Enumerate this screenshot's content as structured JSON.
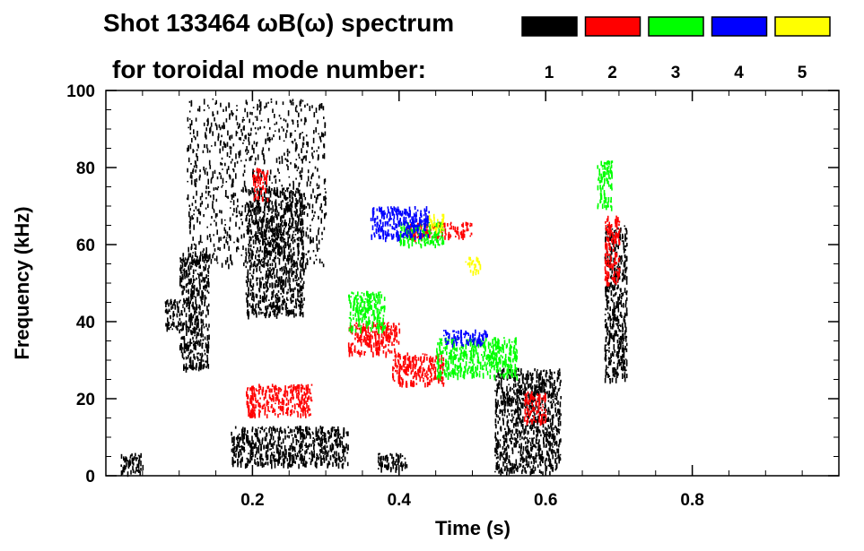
{
  "chart_data": {
    "type": "scatter",
    "title_line1": "Shot 133464 ωB(ω) spectrum",
    "title_line2": "for toroidal mode number:",
    "xlabel": "Time (s)",
    "ylabel": "Frequency (kHz)",
    "xlim": [
      0.0,
      1.0
    ],
    "ylim": [
      0,
      100
    ],
    "x_ticks": [
      {
        "value": 0.2,
        "label": "0.2"
      },
      {
        "value": 0.4,
        "label": "0.4"
      },
      {
        "value": 0.6,
        "label": "0.6"
      },
      {
        "value": 0.8,
        "label": "0.8"
      }
    ],
    "y_ticks": [
      {
        "value": 0,
        "label": "0"
      },
      {
        "value": 20,
        "label": "20"
      },
      {
        "value": 40,
        "label": "40"
      },
      {
        "value": 60,
        "label": "60"
      },
      {
        "value": 80,
        "label": "80"
      },
      {
        "value": 100,
        "label": "100"
      }
    ],
    "legend": [
      {
        "mode": "1",
        "color": "#000000"
      },
      {
        "mode": "2",
        "color": "#ff0000"
      },
      {
        "mode": "3",
        "color": "#00ff00"
      },
      {
        "mode": "4",
        "color": "#0000ff"
      },
      {
        "mode": "5",
        "color": "#ffff00"
      }
    ],
    "series": [
      {
        "name": "n=1",
        "color": "#000000",
        "regions": [
          {
            "t": [
              0.1,
              0.14
            ],
            "f": [
              28,
              58
            ]
          },
          {
            "t": [
              0.08,
              0.1
            ],
            "f": [
              38,
              46
            ]
          },
          {
            "t": [
              0.17,
              0.33
            ],
            "f": [
              3,
              13
            ]
          },
          {
            "t": [
              0.19,
              0.27
            ],
            "f": [
              42,
              75
            ]
          },
          {
            "t": [
              0.11,
              0.3
            ],
            "f": [
              55,
              98
            ]
          },
          {
            "t": [
              0.53,
              0.62
            ],
            "f": [
              1,
              28
            ]
          },
          {
            "t": [
              0.68,
              0.71
            ],
            "f": [
              25,
              65
            ]
          },
          {
            "t": [
              0.37,
              0.41
            ],
            "f": [
              2,
              6
            ]
          },
          {
            "t": [
              0.02,
              0.05
            ],
            "f": [
              1,
              6
            ]
          }
        ]
      },
      {
        "name": "n=2",
        "color": "#ff0000",
        "regions": [
          {
            "t": [
              0.19,
              0.28
            ],
            "f": [
              16,
              24
            ]
          },
          {
            "t": [
              0.33,
              0.4
            ],
            "f": [
              32,
              40
            ]
          },
          {
            "t": [
              0.39,
              0.46
            ],
            "f": [
              24,
              32
            ]
          },
          {
            "t": [
              0.41,
              0.5
            ],
            "f": [
              62,
              66
            ]
          },
          {
            "t": [
              0.57,
              0.6
            ],
            "f": [
              14,
              22
            ]
          },
          {
            "t": [
              0.68,
              0.7
            ],
            "f": [
              50,
              68
            ]
          },
          {
            "t": [
              0.2,
              0.22
            ],
            "f": [
              72,
              80
            ]
          }
        ]
      },
      {
        "name": "n=3",
        "color": "#00ff00",
        "regions": [
          {
            "t": [
              0.33,
              0.38
            ],
            "f": [
              38,
              48
            ]
          },
          {
            "t": [
              0.45,
              0.56
            ],
            "f": [
              26,
              36
            ]
          },
          {
            "t": [
              0.67,
              0.69
            ],
            "f": [
              70,
              82
            ]
          },
          {
            "t": [
              0.4,
              0.46
            ],
            "f": [
              60,
              66
            ]
          }
        ]
      },
      {
        "name": "n=4",
        "color": "#0000ff",
        "regions": [
          {
            "t": [
              0.36,
              0.44
            ],
            "f": [
              62,
              70
            ]
          },
          {
            "t": [
              0.46,
              0.52
            ],
            "f": [
              34,
              38
            ]
          }
        ]
      },
      {
        "name": "n=5",
        "color": "#ffff00",
        "regions": [
          {
            "t": [
              0.44,
              0.46
            ],
            "f": [
              64,
              68
            ]
          },
          {
            "t": [
              0.49,
              0.51
            ],
            "f": [
              53,
              57
            ]
          }
        ]
      }
    ]
  }
}
